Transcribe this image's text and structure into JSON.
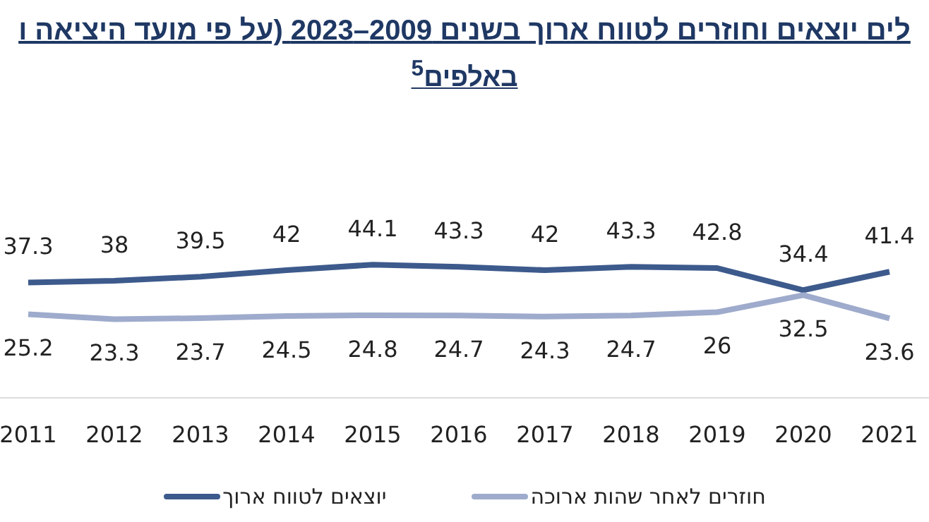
{
  "chart_data": {
    "type": "line",
    "title": "לים יוצאים וחוזרים לטווח ארוך בשנים 2009–2023 (על פי מועד היציאה ו",
    "subtitle": "באלפים$^{5}$",
    "categories": [
      "2011",
      "2012",
      "2013",
      "2014",
      "2015",
      "2016",
      "2017",
      "2018",
      "2019",
      "2020",
      "2021"
    ],
    "series": [
      {
        "name": "יוצאים לטווח ארוך",
        "color": "#3d5a8c",
        "values": [
          37.3,
          38,
          39.5,
          42,
          44.1,
          43.3,
          42,
          43.3,
          42.8,
          34.4,
          41.4
        ]
      },
      {
        "name": "חוזרים לאחר שהות ארוכה",
        "color": "#9eabcc",
        "values": [
          25.2,
          23.3,
          23.7,
          24.5,
          24.8,
          24.7,
          24.3,
          24.7,
          26,
          32.5,
          23.6
        ]
      }
    ],
    "data_labels": true,
    "legend": "bottom",
    "marker": "none",
    "line_style": "solid"
  }
}
